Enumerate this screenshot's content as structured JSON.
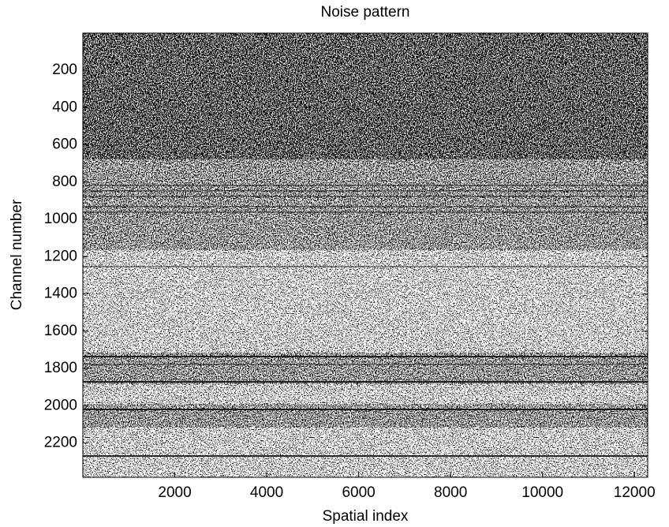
{
  "chart_data": {
    "type": "image",
    "title": "Noise pattern",
    "x_label": "Spatial index",
    "y_label": "Channel number",
    "xlim": [
      0,
      12288
    ],
    "ylim": [
      0,
      2384
    ],
    "y_direction": "reverse",
    "xticks": [
      2000,
      4000,
      6000,
      8000,
      10000,
      12000
    ],
    "yticks": [
      200,
      400,
      600,
      800,
      1000,
      1200,
      1400,
      1600,
      1800,
      2000,
      2200
    ]
  }
}
